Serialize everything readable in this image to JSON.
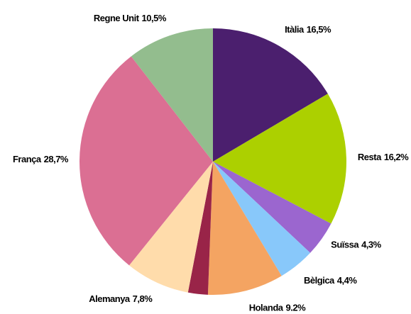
{
  "chart_data": {
    "type": "pie",
    "categories": [
      "Itàlia",
      "Resta",
      "Suïssa",
      "Bèlgica",
      "Holanda",
      null,
      "Alemanya",
      "França",
      "Regne Unit"
    ],
    "values": [
      16.5,
      16.2,
      4.3,
      4.4,
      9.2,
      2.4,
      7.8,
      28.7,
      10.5
    ],
    "value_labels": [
      "16,5%",
      "16,2%",
      "4,3%",
      "4,4%",
      "9.2%",
      null,
      "7,8%",
      "28,7%",
      "10,5%"
    ],
    "colors": [
      "#4b1f6e",
      "#acd000",
      "#9b66cf",
      "#88c8fa",
      "#f4a462",
      "#992448",
      "#ffdcab",
      "#db6f93",
      "#93bd8e"
    ]
  }
}
